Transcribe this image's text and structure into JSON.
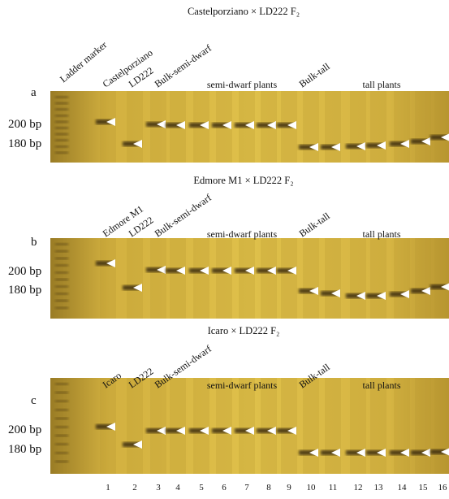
{
  "panels": [
    {
      "letter": "a",
      "title": "Castelporziano × LD222  F₂",
      "ladder": "Ladder marker",
      "lane_labels": [
        "Castelporziano",
        "LD222",
        "Bulk-semi-dwarf",
        "semi-dwarf plants",
        "Bulk-tall",
        "tall plants"
      ],
      "size_labels": [
        "200 bp",
        "180 bp"
      ]
    },
    {
      "letter": "b",
      "title": "Edmore M1 × LD222  F₂",
      "lane_labels": [
        "Edmore M1",
        "LD222",
        "Bulk-semi-dwarf",
        "semi-dwarf plants",
        "Bulk-tall",
        "tall plants"
      ],
      "size_labels": [
        "200 bp",
        "180 bp"
      ]
    },
    {
      "letter": "c",
      "title": "Icaro × LD222  F₂",
      "lane_labels": [
        "Icaro",
        "LD222",
        "Bulk-semi-dwarf",
        "semi-dwarf plants",
        "Bulk-tall",
        "tall plants"
      ],
      "size_labels": [
        "200 bp",
        "180 bp"
      ]
    }
  ],
  "lane_numbers": [
    "1",
    "2",
    "3",
    "4",
    "5",
    "6",
    "7",
    "8",
    "9",
    "10",
    "11",
    "12",
    "13",
    "14",
    "15",
    "16"
  ]
}
